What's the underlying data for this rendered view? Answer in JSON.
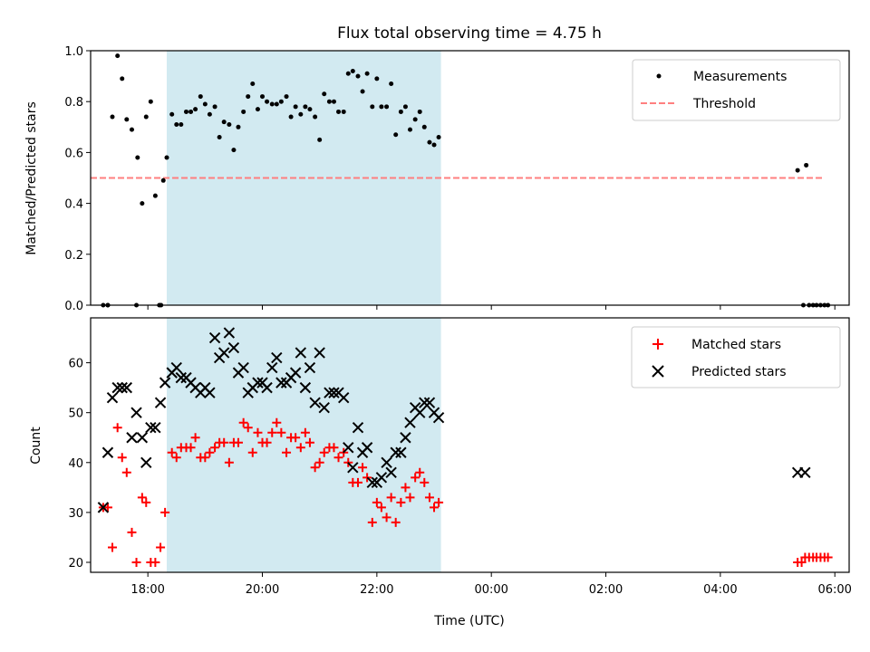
{
  "chart_data": [
    {
      "type": "scatter",
      "title": "Flux total observing time = 4.75 h",
      "xlabel": "",
      "ylabel": "Matched/Predicted stars",
      "xlim": [
        17.0,
        30.25
      ],
      "ylim": [
        0.0,
        1.0
      ],
      "yticks": [
        0.0,
        0.2,
        0.4,
        0.6,
        0.8,
        1.0
      ],
      "ytick_labels": [
        "0.0",
        "0.2",
        "0.4",
        "0.6",
        "0.8",
        "1.0"
      ],
      "shaded_span": [
        18.33,
        23.12
      ],
      "threshold": {
        "name": "Threshold",
        "value": 0.5,
        "x": [
          17.0,
          29.8
        ],
        "color": "#ff7f7f"
      },
      "series": [
        {
          "name": "Measurements",
          "color": "#000000",
          "x": [
            17.3,
            17.38,
            17.47,
            17.55,
            17.63,
            17.72,
            17.82,
            17.9,
            17.97,
            18.05,
            18.13,
            18.2,
            18.27,
            18.33,
            18.42,
            18.5,
            18.58,
            18.67,
            18.75,
            18.83,
            18.92,
            19.0,
            19.08,
            19.17,
            19.25,
            19.33,
            19.42,
            19.5,
            19.58,
            19.67,
            19.75,
            19.83,
            19.92,
            20.0,
            20.08,
            20.17,
            20.25,
            20.33,
            20.42,
            20.5,
            20.58,
            20.67,
            20.75,
            20.83,
            20.92,
            21.0,
            21.08,
            21.17,
            21.25,
            21.33,
            21.42,
            21.5,
            21.58,
            21.67,
            21.75,
            21.83,
            21.92,
            22.0,
            22.08,
            22.17,
            22.25,
            22.33,
            22.42,
            22.5,
            22.58,
            22.67,
            22.75,
            22.83,
            22.92,
            23.0,
            23.08,
            17.22,
            17.3,
            17.8,
            18.23,
            29.35,
            29.45,
            29.5,
            29.55,
            29.62,
            29.68,
            29.75,
            29.82,
            29.88
          ],
          "y": [
            0.0,
            0.74,
            0.98,
            0.89,
            0.73,
            0.69,
            0.58,
            0.4,
            0.74,
            0.8,
            0.43,
            0.0,
            0.49,
            0.58,
            0.75,
            0.71,
            0.71,
            0.76,
            0.76,
            0.77,
            0.82,
            0.79,
            0.75,
            0.78,
            0.66,
            0.72,
            0.71,
            0.61,
            0.7,
            0.76,
            0.82,
            0.87,
            0.77,
            0.82,
            0.8,
            0.79,
            0.79,
            0.8,
            0.82,
            0.74,
            0.78,
            0.75,
            0.78,
            0.77,
            0.74,
            0.65,
            0.83,
            0.8,
            0.8,
            0.76,
            0.76,
            0.91,
            0.92,
            0.9,
            0.84,
            0.91,
            0.78,
            0.89,
            0.78,
            0.78,
            0.87,
            0.67,
            0.76,
            0.78,
            0.69,
            0.73,
            0.76,
            0.7,
            0.64,
            0.63,
            0.66,
            0.0,
            0.0,
            0.0,
            0.0,
            0.53,
            0.0,
            0.55,
            0.0,
            0.0,
            0.0,
            0.0,
            0.0,
            0.0
          ]
        }
      ],
      "legend": {
        "location": "top-right",
        "entries": [
          "Measurements",
          "Threshold"
        ]
      }
    },
    {
      "type": "scatter",
      "title": "",
      "xlabel": "Time (UTC)",
      "ylabel": "Count",
      "xlim": [
        17.0,
        30.25
      ],
      "ylim": [
        18,
        69
      ],
      "yticks": [
        20,
        30,
        40,
        50,
        60
      ],
      "ytick_labels": [
        "20",
        "30",
        "40",
        "50",
        "60"
      ],
      "xticks": [
        18,
        20,
        22,
        24,
        26,
        28,
        30
      ],
      "xtick_labels": [
        "18:00",
        "20:00",
        "22:00",
        "00:00",
        "02:00",
        "04:00",
        "06:00"
      ],
      "shaded_span": [
        18.33,
        23.12
      ],
      "series": [
        {
          "name": "Matched stars",
          "marker": "+",
          "color": "#ff0000",
          "x": [
            17.22,
            17.38,
            17.47,
            17.55,
            17.63,
            17.72,
            17.8,
            17.9,
            17.97,
            18.05,
            18.13,
            18.22,
            18.3,
            18.42,
            18.5,
            18.58,
            18.67,
            18.75,
            18.83,
            18.92,
            19.0,
            19.08,
            19.17,
            19.25,
            19.33,
            19.42,
            19.5,
            19.58,
            19.67,
            19.75,
            19.83,
            19.92,
            20.0,
            20.08,
            20.17,
            20.25,
            20.33,
            20.42,
            20.5,
            20.58,
            20.67,
            20.75,
            20.83,
            20.92,
            21.0,
            21.08,
            21.17,
            21.25,
            21.33,
            21.42,
            21.5,
            21.58,
            21.67,
            21.75,
            21.83,
            21.92,
            22.0,
            22.08,
            22.17,
            22.25,
            22.33,
            22.42,
            22.5,
            22.58,
            22.67,
            22.75,
            22.83,
            22.92,
            23.0,
            23.08,
            17.3,
            29.35,
            29.42,
            29.48,
            29.55,
            29.62,
            29.68,
            29.75,
            29.82,
            29.88
          ],
          "y": [
            31,
            23,
            47,
            41,
            38,
            26,
            20,
            33,
            32,
            20,
            20,
            23,
            30,
            42,
            41,
            43,
            43,
            43,
            45,
            41,
            41,
            42,
            43,
            44,
            44,
            40,
            44,
            44,
            48,
            47,
            42,
            46,
            44,
            44,
            46,
            48,
            46,
            42,
            45,
            45,
            43,
            46,
            44,
            39,
            40,
            42,
            43,
            43,
            41,
            42,
            40,
            36,
            36,
            39,
            37,
            28,
            32,
            31,
            29,
            33,
            28,
            32,
            35,
            33,
            37,
            38,
            36,
            33,
            31,
            32,
            31,
            20,
            20,
            21,
            21,
            21,
            21,
            21,
            21,
            21
          ]
        },
        {
          "name": "Predicted stars",
          "marker": "x",
          "color": "#000000",
          "x": [
            17.3,
            17.38,
            17.47,
            17.55,
            17.63,
            17.72,
            17.8,
            17.9,
            17.97,
            18.05,
            18.13,
            18.22,
            18.3,
            18.42,
            18.5,
            18.58,
            18.67,
            18.75,
            18.83,
            18.92,
            19.0,
            19.08,
            19.17,
            19.25,
            19.33,
            19.42,
            19.5,
            19.58,
            19.67,
            19.75,
            19.83,
            19.92,
            20.0,
            20.08,
            20.17,
            20.25,
            20.33,
            20.42,
            20.5,
            20.58,
            20.67,
            20.75,
            20.83,
            20.92,
            21.0,
            21.08,
            21.17,
            21.25,
            21.33,
            21.42,
            21.5,
            21.58,
            21.67,
            21.75,
            21.83,
            21.92,
            22.0,
            22.08,
            22.17,
            22.25,
            22.33,
            22.42,
            22.5,
            22.58,
            22.67,
            22.75,
            22.83,
            22.92,
            23.0,
            23.08,
            17.22,
            29.35,
            29.48
          ],
          "y": [
            42,
            53,
            55,
            55,
            55,
            45,
            50,
            45,
            40,
            47,
            47,
            52,
            56,
            58,
            59,
            57,
            57,
            56,
            55,
            54,
            55,
            54,
            65,
            61,
            62,
            66,
            63,
            58,
            59,
            54,
            55,
            56,
            56,
            55,
            59,
            61,
            56,
            56,
            57,
            58,
            62,
            55,
            59,
            52,
            62,
            51,
            54,
            54,
            54,
            53,
            43,
            39,
            47,
            42,
            43,
            36,
            36,
            37,
            40,
            38,
            42,
            42,
            45,
            48,
            51,
            50,
            52,
            52,
            50,
            49,
            31,
            38,
            38
          ]
        }
      ],
      "legend": {
        "location": "top-right",
        "entries": [
          "Matched stars",
          "Predicted stars"
        ]
      }
    }
  ],
  "colors": {
    "shade": "#add8e6"
  }
}
